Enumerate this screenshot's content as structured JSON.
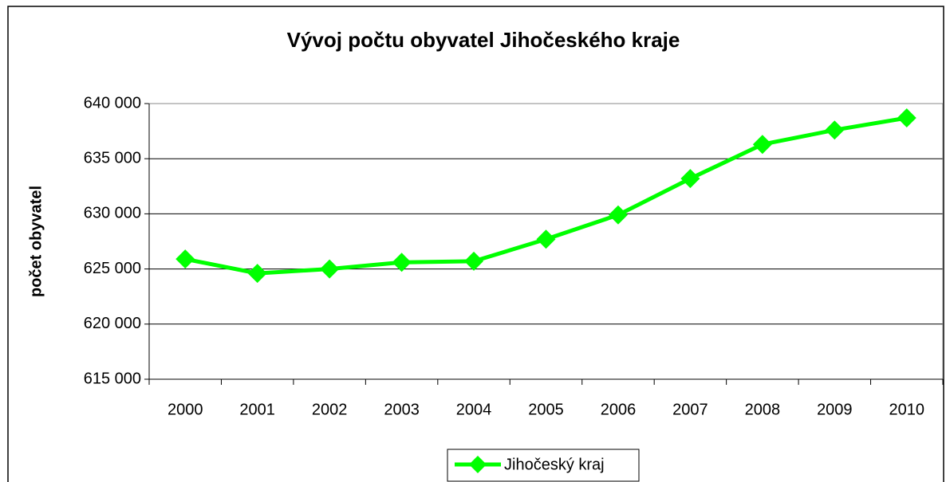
{
  "chart_data": {
    "type": "line",
    "title": "Vývoj počtu obyvatel Jihočeského kraje",
    "y_label": "počet obyvatel",
    "categories": [
      "2000",
      "2001",
      "2002",
      "2003",
      "2004",
      "2005",
      "2006",
      "2007",
      "2008",
      "2009",
      "2010"
    ],
    "series": [
      {
        "name": "Jihočeský kraj",
        "color": "#00ff00",
        "values": [
          625900,
          624600,
          625000,
          625600,
          625700,
          627700,
          629900,
          633200,
          636300,
          637600,
          638700
        ]
      }
    ],
    "ylim": [
      615000,
      640000
    ],
    "yticks": [
      {
        "value": 615000,
        "label": "615 000"
      },
      {
        "value": 620000,
        "label": "620 000"
      },
      {
        "value": 625000,
        "label": "625 000"
      },
      {
        "value": 630000,
        "label": "630 000"
      },
      {
        "value": 635000,
        "label": "635 000"
      },
      {
        "value": 640000,
        "label": "640 000"
      }
    ],
    "grid": true,
    "legend": "bottom"
  }
}
